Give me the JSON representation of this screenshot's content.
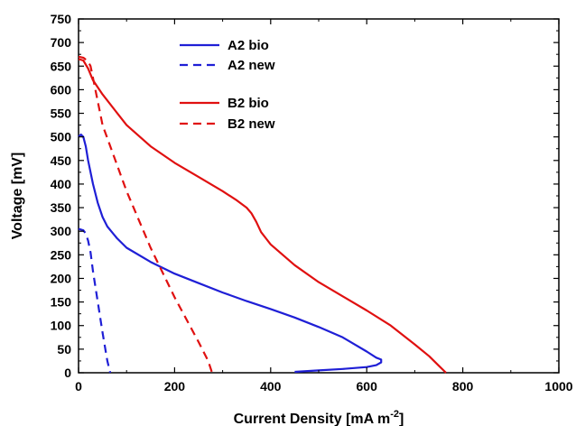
{
  "chart_data": {
    "type": "line",
    "title": "",
    "xlabel": "Current Density [mA m",
    "xlabel_sup": "-2",
    "xlabel_end": "]",
    "ylabel": "Voltage [mV]",
    "xlim": [
      0,
      1000
    ],
    "ylim": [
      0,
      750
    ],
    "xticks": [
      0,
      200,
      400,
      600,
      800,
      1000
    ],
    "xtick_labels": [
      "0",
      "200",
      "400",
      "600",
      "800",
      "1000"
    ],
    "yticks": [
      0,
      50,
      100,
      150,
      200,
      250,
      300,
      350,
      400,
      450,
      500,
      550,
      600,
      650,
      700,
      750
    ],
    "ytick_labels": [
      "0",
      "50",
      "100",
      "150",
      "200",
      "250",
      "300",
      "350",
      "400",
      "450",
      "500",
      "550",
      "600",
      "650",
      "700",
      "750"
    ],
    "grid": false,
    "legend_position": "top-center",
    "series": [
      {
        "name": "A2 bio",
        "color": "#1f1fd6",
        "dash": "solid",
        "x": [
          0,
          5,
          10,
          15,
          20,
          30,
          40,
          50,
          60,
          80,
          100,
          150,
          200,
          250,
          300,
          350,
          400,
          450,
          500,
          550,
          600,
          620,
          630,
          630,
          620,
          600,
          550,
          500,
          450
        ],
        "y": [
          500,
          505,
          500,
          480,
          450,
          400,
          360,
          330,
          310,
          285,
          265,
          235,
          210,
          190,
          170,
          152,
          135,
          117,
          97,
          75,
          45,
          32,
          28,
          22,
          16,
          12,
          8,
          5,
          2
        ]
      },
      {
        "name": "A2 new",
        "color": "#1f1fd6",
        "dash": "dashed",
        "x": [
          0,
          10,
          15,
          20,
          25,
          30,
          40,
          50,
          60,
          66
        ],
        "y": [
          305,
          302,
          295,
          280,
          255,
          215,
          150,
          85,
          25,
          0
        ]
      },
      {
        "name": "B2 bio",
        "color": "#e01010",
        "dash": "solid",
        "x": [
          0,
          10,
          20,
          30,
          50,
          100,
          150,
          200,
          250,
          300,
          330,
          350,
          360,
          370,
          380,
          390,
          400,
          450,
          500,
          550,
          600,
          650,
          700,
          730,
          750,
          765
        ],
        "y": [
          665,
          662,
          645,
          620,
          590,
          525,
          480,
          445,
          415,
          385,
          365,
          350,
          338,
          320,
          298,
          285,
          272,
          228,
          192,
          162,
          132,
          100,
          60,
          35,
          15,
          0
        ]
      },
      {
        "name": "B2 new",
        "color": "#e01010",
        "dash": "dashed",
        "x": [
          0,
          10,
          20,
          25,
          30,
          50,
          100,
          150,
          200,
          250,
          270,
          278
        ],
        "y": [
          670,
          668,
          660,
          650,
          625,
          525,
          385,
          265,
          160,
          65,
          25,
          0
        ]
      }
    ]
  }
}
